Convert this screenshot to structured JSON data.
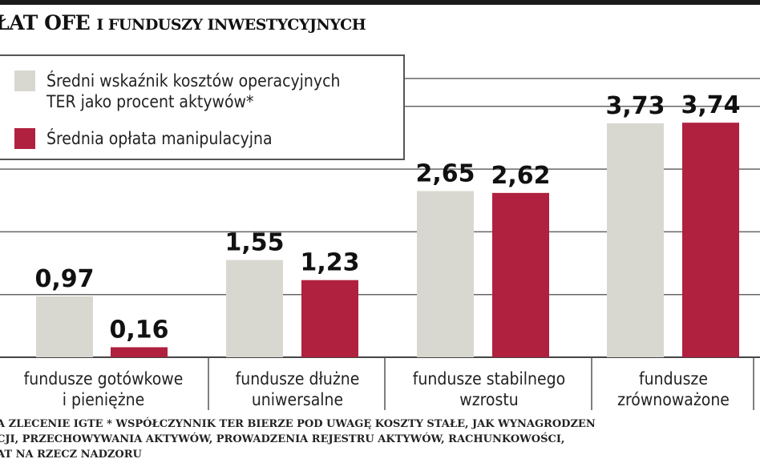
{
  "title": {
    "main": "ŁAT OFE",
    "rest": "I FUNDUSZY INWESTYCYJNYCH"
  },
  "chart_data": {
    "type": "bar",
    "categories": [
      "fundusze gotówkowe i pieniężne",
      "fundusze dłużne uniwersalne",
      "fundusze stabilnego wzrostu",
      "fundusze zrównoważone"
    ],
    "category_lines": [
      [
        "fundusze gotówkowe",
        "i pieniężne"
      ],
      [
        "fundusze dłużne",
        "uniwersalne"
      ],
      [
        "fundusze stabilnego",
        "wzrostu"
      ],
      [
        "fundusze",
        "zrównoważone"
      ]
    ],
    "series": [
      {
        "name": "Średni wskaźnik kosztów operacyjnych TER jako procent aktywów*",
        "name_lines": [
          "Średni wskaźnik kosztów operacyjnych",
          "TER jako procent aktywów*"
        ],
        "color": "#d9d8d0",
        "values": [
          0.97,
          1.55,
          2.65,
          3.73
        ],
        "labels": [
          "0,97",
          "1,55",
          "2,65",
          "3,73"
        ]
      },
      {
        "name": "Średnia opłata manipulacyjna",
        "name_lines": [
          "Średnia opłata manipulacyjna"
        ],
        "color": "#b0213f",
        "values": [
          0.16,
          1.23,
          2.62,
          3.74
        ],
        "labels": [
          "0,16",
          "1,23",
          "2,62",
          "3,74"
        ]
      }
    ],
    "ylim": [
      0,
      4.5
    ],
    "grid": true,
    "legend": "top-left"
  },
  "footer": [
    "A ZLECENIE IGTE * WSPÓŁCZYNNIK TER BIERZE POD UWAGĘ KOSZTY STAŁE, JAK WYNAGRODZEN",
    "CJI, PRZECHOWYWANIA AKTYWÓW, PROWADZENIA REJESTRU AKTYWÓW, RACHUNKOWOŚCI,",
    "AT NA RZECZ NADZORU"
  ]
}
